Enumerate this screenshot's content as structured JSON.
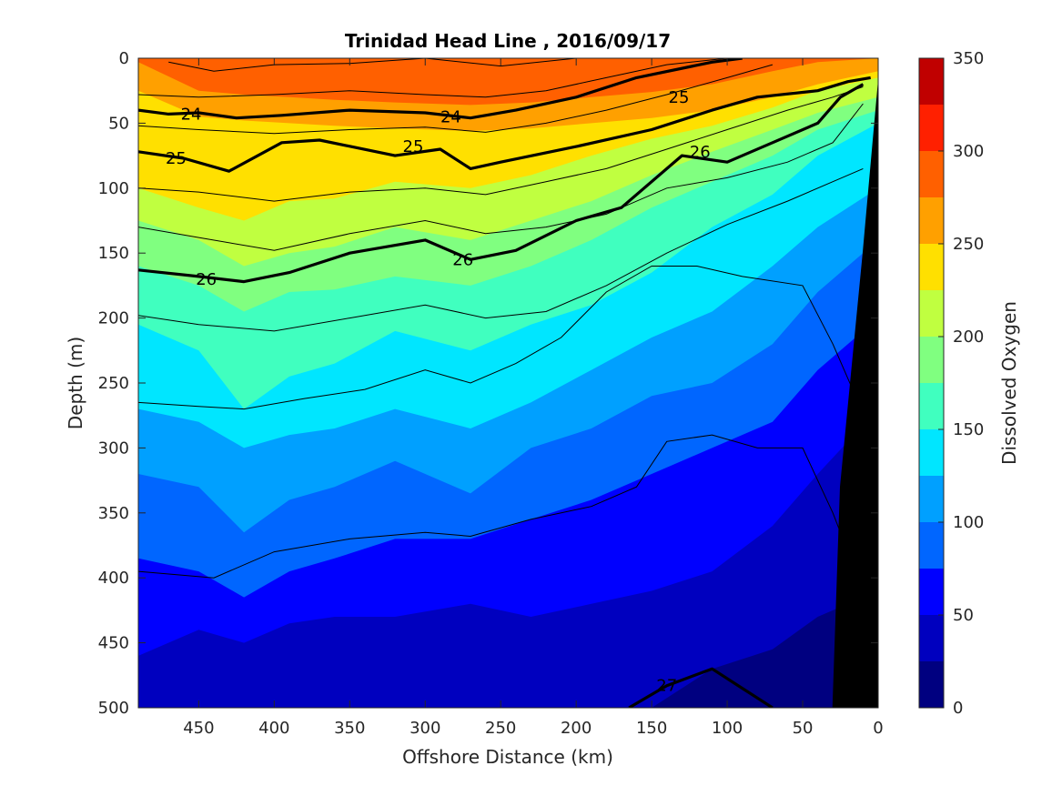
{
  "chart_data": {
    "type": "heatmap",
    "title": "Trinidad Head Line , 2016/09/17",
    "xlabel": "Offshore Distance (km)",
    "ylabel": "Depth (m)",
    "colorbar_label": "Dissolved Oxygen",
    "x_range": [
      490,
      0
    ],
    "x_reversed": true,
    "y_range": [
      0,
      500
    ],
    "y_reversed": true,
    "x_ticks": [
      450,
      400,
      350,
      300,
      250,
      200,
      150,
      100,
      50,
      0
    ],
    "y_ticks": [
      0,
      50,
      100,
      150,
      200,
      250,
      300,
      350,
      400,
      450,
      500
    ],
    "colorbar_ticks": [
      0,
      50,
      100,
      150,
      200,
      250,
      300,
      350
    ],
    "color_levels": [
      {
        "min": 0,
        "max": 25,
        "color": "#000080"
      },
      {
        "min": 25,
        "max": 50,
        "color": "#0000bf"
      },
      {
        "min": 50,
        "max": 75,
        "color": "#0000ff"
      },
      {
        "min": 75,
        "max": 100,
        "color": "#0066ff"
      },
      {
        "min": 100,
        "max": 125,
        "color": "#00a0ff"
      },
      {
        "min": 125,
        "max": 150,
        "color": "#00e6ff"
      },
      {
        "min": 150,
        "max": 175,
        "color": "#40ffbf"
      },
      {
        "min": 175,
        "max": 200,
        "color": "#80ff80"
      },
      {
        "min": 200,
        "max": 225,
        "color": "#c0ff40"
      },
      {
        "min": 225,
        "max": 250,
        "color": "#ffe000"
      },
      {
        "min": 250,
        "max": 275,
        "color": "#ffa000"
      },
      {
        "min": 275,
        "max": 300,
        "color": "#ff6000"
      },
      {
        "min": 300,
        "max": 325,
        "color": "#ff2000"
      },
      {
        "min": 325,
        "max": 350,
        "color": "#c00000"
      }
    ],
    "oxygen_boundaries": [
      {
        "level": 275,
        "depths": [
          3,
          25,
          28,
          30,
          32,
          34,
          36,
          34,
          30,
          26,
          20,
          10,
          3,
          0
        ]
      },
      {
        "level": 250,
        "depths": [
          25,
          45,
          48,
          50,
          52,
          54,
          56,
          54,
          50,
          46,
          40,
          30,
          20,
          10
        ]
      },
      {
        "level": 225,
        "depths": [
          100,
          115,
          125,
          110,
          108,
          95,
          100,
          90,
          75,
          62,
          52,
          38,
          25,
          15
        ]
      },
      {
        "level": 200,
        "depths": [
          125,
          140,
          160,
          150,
          145,
          130,
          140,
          125,
          110,
          90,
          72,
          55,
          42,
          30
        ]
      },
      {
        "level": 175,
        "depths": [
          160,
          175,
          195,
          180,
          178,
          168,
          175,
          160,
          140,
          115,
          95,
          75,
          55,
          40
        ]
      },
      {
        "level": 150,
        "depths": [
          205,
          225,
          270,
          245,
          235,
          210,
          225,
          205,
          190,
          165,
          130,
          105,
          75,
          50
        ]
      },
      {
        "level": 125,
        "depths": [
          270,
          280,
          300,
          290,
          285,
          270,
          285,
          265,
          240,
          215,
          195,
          160,
          130,
          100
        ]
      },
      {
        "level": 100,
        "depths": [
          320,
          330,
          365,
          340,
          330,
          310,
          335,
          300,
          285,
          260,
          250,
          220,
          180,
          140
        ]
      },
      {
        "level": 75,
        "depths": [
          385,
          395,
          415,
          395,
          385,
          370,
          370,
          355,
          340,
          320,
          300,
          280,
          240,
          200
        ]
      },
      {
        "level": 50,
        "depths": [
          460,
          440,
          450,
          435,
          430,
          430,
          420,
          430,
          420,
          410,
          395,
          360,
          320,
          270
        ]
      },
      {
        "level": 25,
        "depths": [
          520,
          520,
          520,
          520,
          520,
          520,
          520,
          520,
          520,
          500,
          470,
          455,
          430,
          410
        ]
      }
    ],
    "boundary_x": [
      490,
      450,
      420,
      390,
      360,
      320,
      270,
      230,
      190,
      150,
      110,
      70,
      40,
      0
    ],
    "density_contours": [
      {
        "label": "24",
        "labeled": true,
        "label_positions": [
          [
            455,
            43
          ],
          [
            283,
            45
          ]
        ],
        "x": [
          490,
          470,
          450,
          425,
          395,
          350,
          300,
          270,
          240,
          200,
          160,
          110,
          90
        ],
        "depth": [
          40,
          43,
          42,
          46,
          44,
          40,
          42,
          46,
          40,
          30,
          15,
          3,
          0
        ]
      },
      {
        "label": "25",
        "labeled": true,
        "label_positions": [
          [
            465,
            77
          ],
          [
            308,
            68
          ],
          [
            132,
            30
          ]
        ],
        "x": [
          490,
          460,
          430,
          395,
          370,
          320,
          290,
          270,
          250,
          200,
          150,
          110,
          80,
          40,
          20,
          5
        ],
        "depth": [
          72,
          77,
          87,
          65,
          63,
          75,
          70,
          85,
          80,
          68,
          55,
          40,
          30,
          25,
          18,
          15
        ]
      },
      {
        "label": "26",
        "labeled": true,
        "label_positions": [
          [
            445,
            170
          ],
          [
            275,
            155
          ],
          [
            118,
            72
          ]
        ],
        "x": [
          490,
          450,
          420,
          390,
          350,
          300,
          270,
          240,
          200,
          170,
          130,
          100,
          70,
          40,
          25,
          10
        ],
        "depth": [
          163,
          168,
          172,
          165,
          150,
          140,
          155,
          148,
          125,
          115,
          75,
          80,
          65,
          50,
          30,
          20
        ]
      },
      {
        "label": "27",
        "labeled": true,
        "label_positions": [
          [
            140,
            483
          ]
        ],
        "x": [
          165,
          140,
          110,
          90,
          70
        ],
        "depth": [
          500,
          483,
          470,
          485,
          500
        ]
      }
    ],
    "thin_contours": [
      {
        "x": [
          470,
          440,
          400,
          350,
          300,
          250,
          200,
          160
        ],
        "depth": [
          3,
          10,
          5,
          4,
          0,
          6,
          0,
          0
        ]
      },
      {
        "x": [
          490,
          450,
          400,
          350,
          300,
          260,
          220,
          180,
          140,
          100
        ],
        "depth": [
          28,
          30,
          28,
          25,
          28,
          30,
          25,
          15,
          5,
          0
        ]
      },
      {
        "x": [
          490,
          450,
          400,
          350,
          300,
          260,
          220,
          180,
          140,
          100,
          70
        ],
        "depth": [
          52,
          55,
          58,
          55,
          53,
          57,
          50,
          40,
          28,
          15,
          5
        ]
      },
      {
        "x": [
          490,
          450,
          400,
          350,
          300,
          260,
          220,
          180,
          140,
          100,
          60,
          30,
          10
        ],
        "depth": [
          100,
          103,
          110,
          103,
          100,
          105,
          95,
          85,
          70,
          55,
          40,
          30,
          22
        ]
      },
      {
        "x": [
          490,
          450,
          400,
          350,
          300,
          260,
          220,
          180,
          140,
          100,
          60,
          30,
          10
        ],
        "depth": [
          130,
          138,
          148,
          135,
          125,
          135,
          130,
          120,
          100,
          92,
          80,
          65,
          35
        ]
      },
      {
        "x": [
          490,
          450,
          400,
          350,
          300,
          260,
          220,
          180,
          140,
          100,
          60,
          30,
          10
        ],
        "depth": [
          198,
          205,
          210,
          200,
          190,
          200,
          195,
          175,
          150,
          128,
          110,
          95,
          85
        ]
      },
      {
        "x": [
          490,
          450,
          420,
          380,
          340,
          300,
          270,
          240,
          210,
          180,
          150,
          120,
          90,
          50,
          30,
          15
        ],
        "depth": [
          265,
          268,
          270,
          262,
          255,
          240,
          250,
          235,
          215,
          180,
          160,
          160,
          168,
          175,
          220,
          260
        ]
      },
      {
        "x": [
          490,
          440,
          400,
          350,
          300,
          270,
          230,
          190,
          160,
          140,
          110,
          80,
          50,
          30,
          20
        ],
        "depth": [
          395,
          400,
          380,
          370,
          365,
          368,
          355,
          345,
          330,
          295,
          290,
          300,
          300,
          350,
          380
        ]
      }
    ],
    "land_polygon": {
      "x": [
        0,
        0,
        30,
        25,
        10,
        0
      ],
      "depth": [
        0,
        500,
        500,
        330,
        150,
        20
      ]
    }
  }
}
